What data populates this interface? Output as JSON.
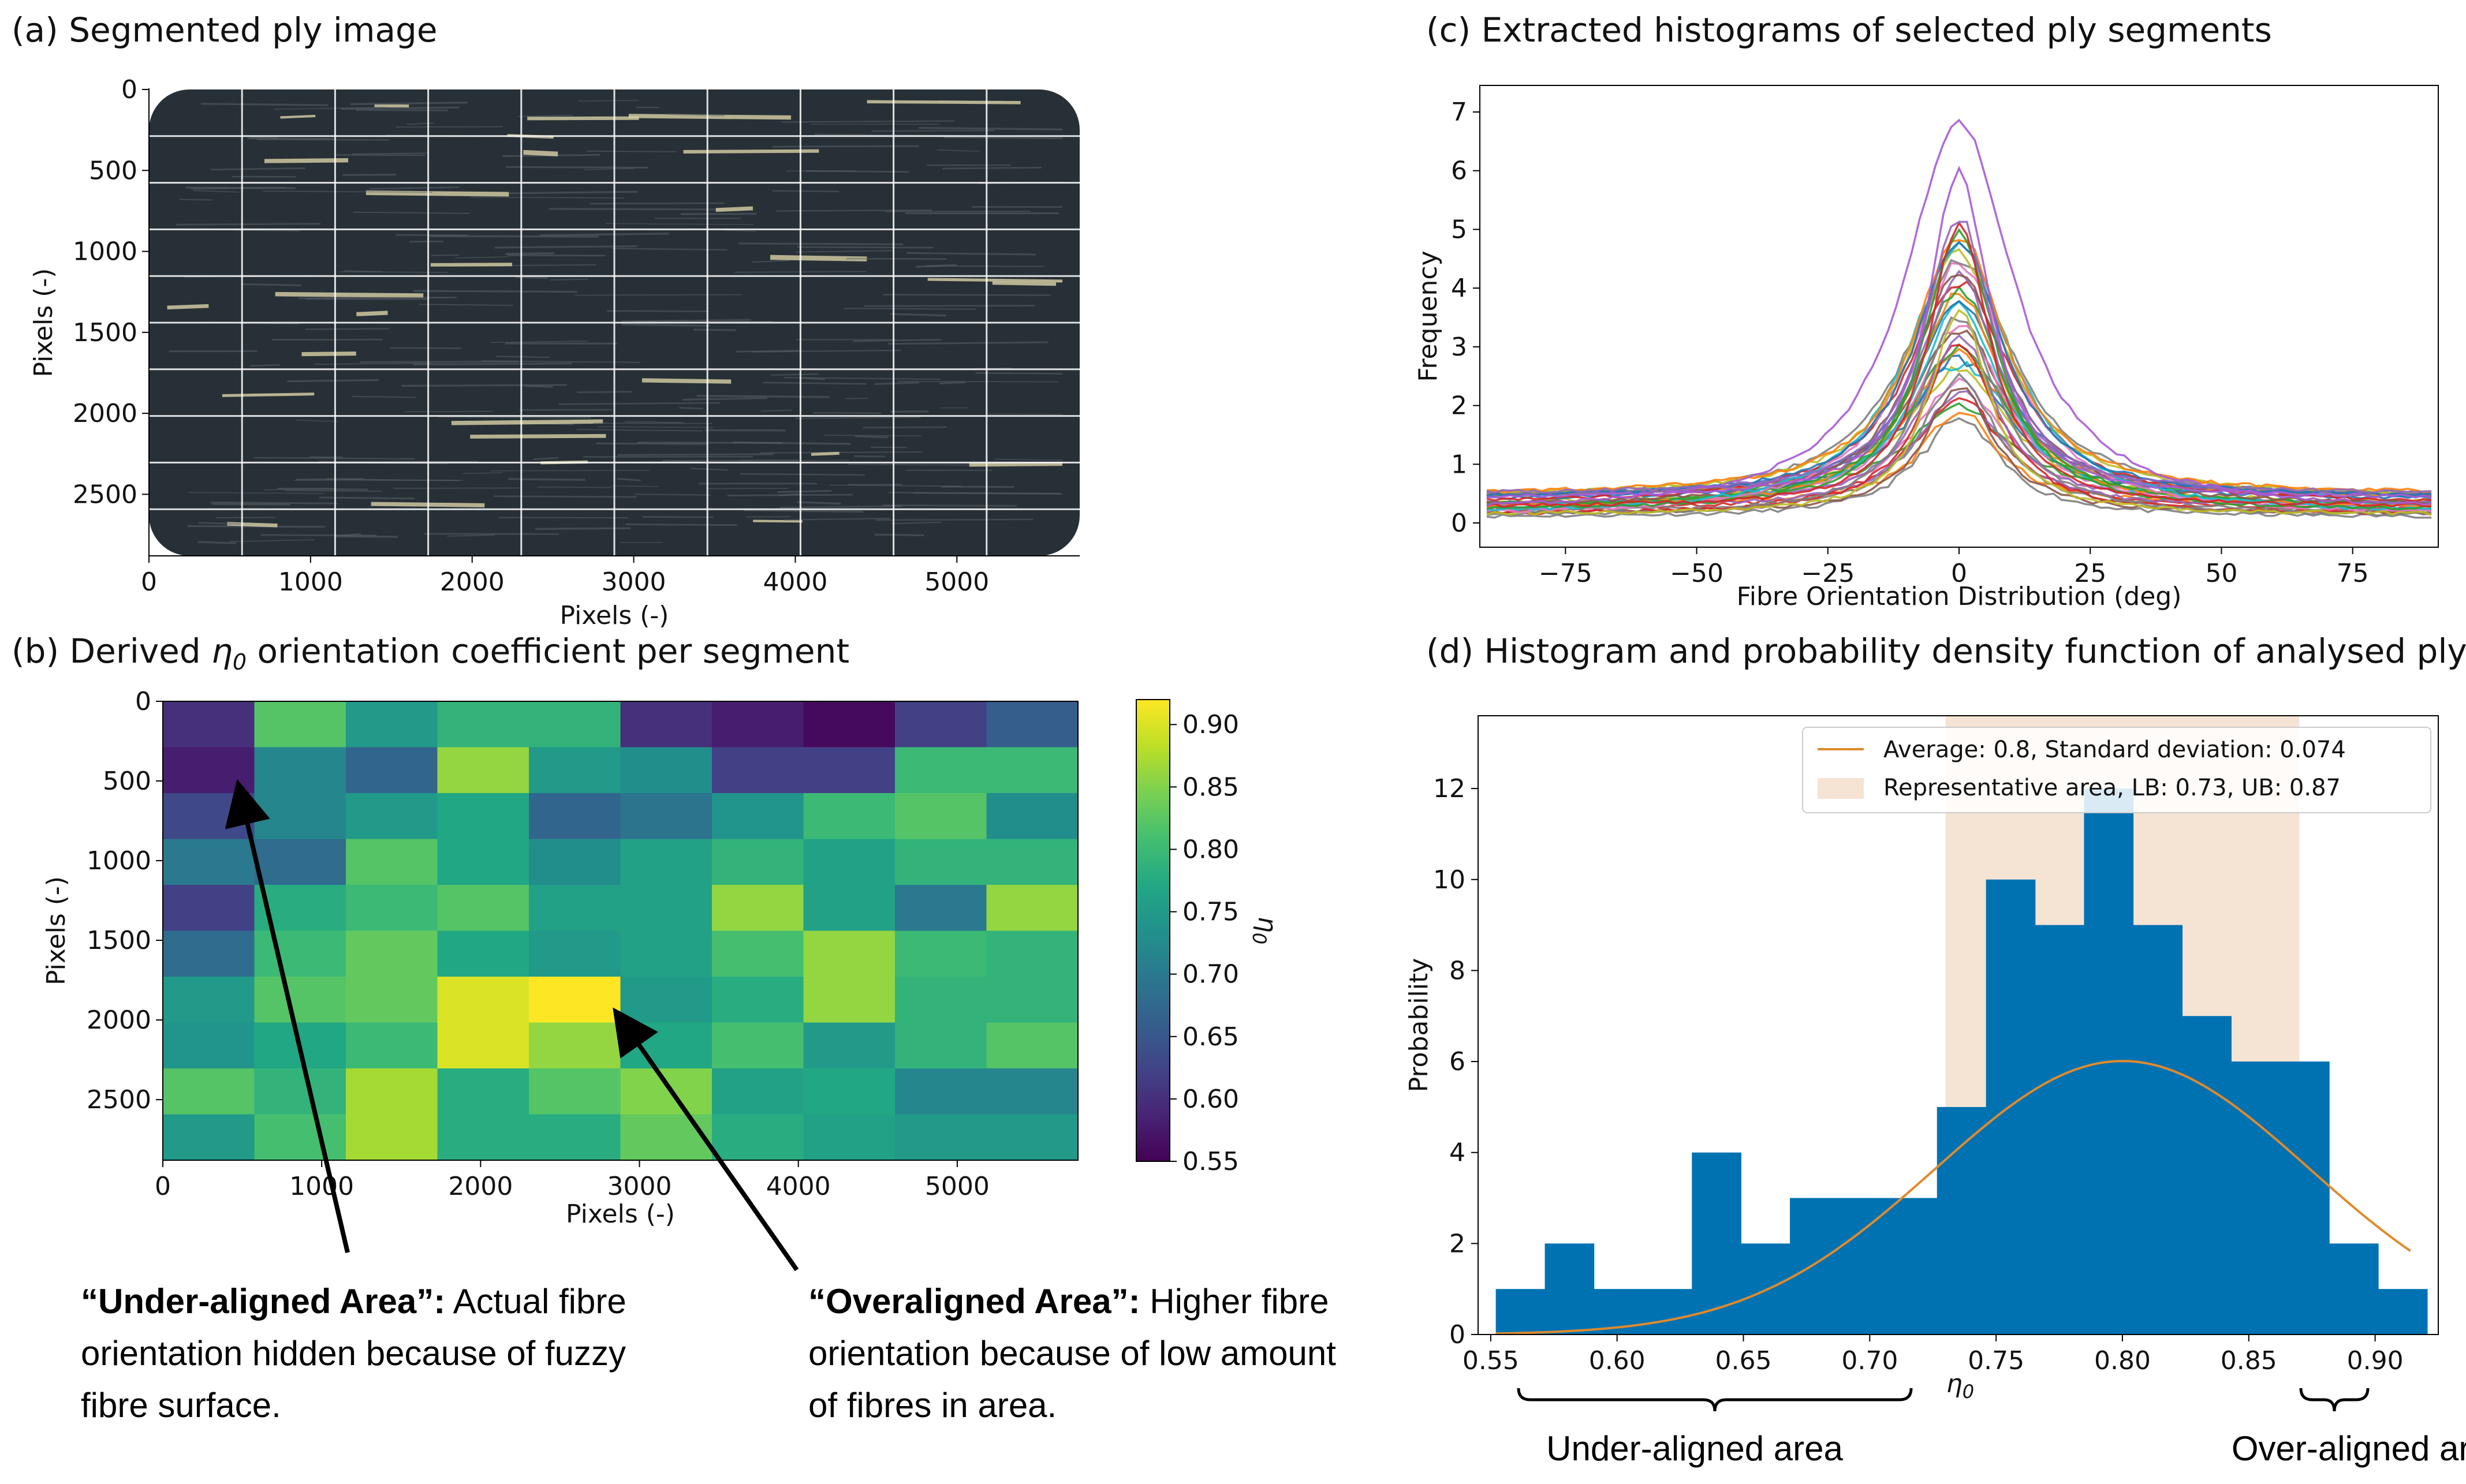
{
  "panels": {
    "a": {
      "title": "(a) Segmented ply image"
    },
    "b": {
      "title_pre": "(b) Derived ",
      "title_sym": "η",
      "title_sub": "0",
      "title_post": " orientation coefficient per segment"
    },
    "c": {
      "title": "(c) Extracted histograms of selected ply segments"
    },
    "d": {
      "title": "(d) Histogram and probability density function of analysed ply"
    }
  },
  "annotations": {
    "under": {
      "bold": "“Under-aligned Area”:",
      "line1": " Actual fibre",
      "line2": "orientation hidden because of fuzzy",
      "line3": "fibre surface."
    },
    "over": {
      "bold": "“Overaligned  Area”:",
      "line1": " Higher fibre",
      "line2": "orientation because of low amount",
      "line3": "of fibres in area."
    },
    "under_area": "Under-aligned area",
    "over_area": "Over-aligned area"
  },
  "colors": {
    "hist": "#0072b2",
    "pdf": "#e08a2c",
    "band": "#f5e3d3",
    "arrow": "#000000"
  },
  "chart_data": [
    {
      "id": "a",
      "type": "image",
      "title": "(a) Segmented ply image",
      "xlabel": "Pixels (-)",
      "ylabel": "Pixels (-)",
      "xticks": [
        0,
        1000,
        2000,
        3000,
        4000,
        5000
      ],
      "yticks": [
        0,
        500,
        1000,
        1500,
        2000,
        2500
      ],
      "xlim": [
        0,
        5760
      ],
      "ylim": [
        2880,
        0
      ],
      "grid_cols": 10,
      "grid_rows": 10
    },
    {
      "id": "b",
      "type": "heatmap",
      "title": "(b) Derived η0 orientation coefficient per segment",
      "xlabel": "Pixels (-)",
      "ylabel": "Pixels (-)",
      "xticks": [
        0,
        1000,
        2000,
        3000,
        4000,
        5000
      ],
      "yticks": [
        0,
        500,
        1000,
        1500,
        2000,
        2500
      ],
      "xlim": [
        0,
        5760
      ],
      "ylim": [
        2880,
        0
      ],
      "colorbar": {
        "label": "η0",
        "min": 0.55,
        "max": 0.92,
        "ticks": [
          0.55,
          0.6,
          0.65,
          0.7,
          0.75,
          0.8,
          0.85,
          0.9
        ],
        "tick_labels": [
          "0.55",
          "0.60",
          "0.65",
          "0.70",
          "0.75",
          "0.80",
          "0.85",
          "0.90"
        ]
      },
      "values": [
        [
          0.6,
          0.82,
          0.75,
          0.79,
          0.79,
          0.6,
          0.58,
          0.56,
          0.62,
          0.66
        ],
        [
          0.58,
          0.72,
          0.67,
          0.86,
          0.75,
          0.73,
          0.62,
          0.62,
          0.8,
          0.8
        ],
        [
          0.63,
          0.72,
          0.75,
          0.77,
          0.67,
          0.69,
          0.74,
          0.8,
          0.82,
          0.73
        ],
        [
          0.7,
          0.68,
          0.82,
          0.77,
          0.73,
          0.76,
          0.79,
          0.76,
          0.79,
          0.79
        ],
        [
          0.62,
          0.78,
          0.8,
          0.82,
          0.76,
          0.76,
          0.86,
          0.76,
          0.7,
          0.86
        ],
        [
          0.68,
          0.8,
          0.83,
          0.77,
          0.75,
          0.76,
          0.81,
          0.86,
          0.8,
          0.79
        ],
        [
          0.75,
          0.82,
          0.83,
          0.9,
          0.93,
          0.75,
          0.78,
          0.86,
          0.79,
          0.79
        ],
        [
          0.74,
          0.77,
          0.8,
          0.9,
          0.86,
          0.77,
          0.81,
          0.75,
          0.79,
          0.82
        ],
        [
          0.82,
          0.79,
          0.87,
          0.78,
          0.82,
          0.85,
          0.76,
          0.77,
          0.72,
          0.72
        ],
        [
          0.75,
          0.81,
          0.87,
          0.78,
          0.78,
          0.83,
          0.78,
          0.76,
          0.75,
          0.75
        ]
      ]
    },
    {
      "id": "c",
      "type": "line",
      "title": "(c) Extracted histograms of selected ply segments",
      "xlabel": "Fibre Orientation Distribution (deg)",
      "ylabel": "Frequency",
      "xlim": [
        -90,
        90
      ],
      "ylim": [
        0,
        7
      ],
      "xticks": [
        -75,
        -50,
        -25,
        0,
        25,
        50,
        75
      ],
      "xtick_labels": [
        "−75",
        "−50",
        "−25",
        "0",
        "25",
        "50",
        "75"
      ],
      "yticks": [
        0,
        1,
        2,
        3,
        4,
        5,
        6,
        7
      ],
      "series_peaks": [
        6.85,
        6.0,
        5.2,
        5.1,
        5.0,
        4.9,
        4.8,
        4.7,
        4.6,
        4.5,
        4.4,
        4.3,
        4.2,
        4.1,
        4.0,
        3.9,
        3.8,
        3.7,
        3.6,
        3.5,
        3.4,
        3.3,
        3.2,
        3.1,
        3.0,
        2.9,
        2.8,
        2.7,
        2.6,
        2.5,
        2.4,
        2.3,
        2.2,
        2.1,
        2.0,
        1.9,
        1.75
      ],
      "series_baseline_range": [
        0.1,
        0.5
      ]
    },
    {
      "id": "d",
      "type": "bar",
      "title": "(d) Histogram and probability density function of analysed ply",
      "xlabel": "η0",
      "ylabel": "Probability",
      "xlim": [
        0.545,
        0.925
      ],
      "ylim": [
        0,
        13.6
      ],
      "xticks": [
        0.55,
        0.6,
        0.65,
        0.7,
        0.75,
        0.8,
        0.85,
        0.9
      ],
      "xtick_labels": [
        "0.55",
        "0.60",
        "0.65",
        "0.70",
        "0.75",
        "0.80",
        "0.85",
        "0.90"
      ],
      "yticks": [
        0,
        2,
        4,
        6,
        8,
        10,
        12
      ],
      "bin_edges": [
        0.552,
        0.5714,
        0.5908,
        0.6102,
        0.6296,
        0.649,
        0.6684,
        0.6878,
        0.7072,
        0.7266,
        0.746,
        0.7654,
        0.7848,
        0.8042,
        0.8236,
        0.843,
        0.8624,
        0.8818,
        0.9012,
        0.9206
      ],
      "values": [
        1,
        2,
        1,
        1,
        4,
        2,
        3,
        3,
        3,
        5,
        10,
        9,
        12,
        9,
        7,
        6,
        6,
        2,
        1
      ],
      "pdf": {
        "mean": 0.8,
        "std": 0.074,
        "x_range": [
          0.552,
          0.914
        ]
      },
      "band": {
        "lb": 0.73,
        "ub": 0.87
      },
      "legend": [
        {
          "label": "Average: 0.8,  Standard deviation: 0.074",
          "kind": "line"
        },
        {
          "label": "Representative area, LB: 0.73, UB: 0.87",
          "kind": "patch"
        }
      ]
    }
  ]
}
